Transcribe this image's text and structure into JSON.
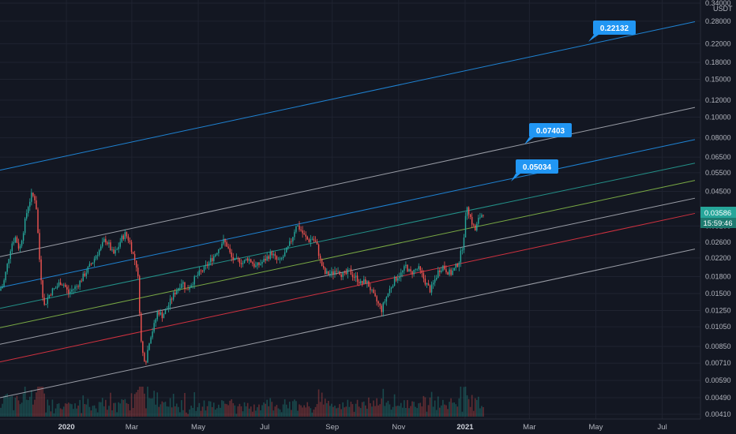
{
  "chart_data": {
    "type": "candlestick",
    "quote_currency": "USDT",
    "scale": "log",
    "grid": true,
    "y_tick_labels": [
      "0.34000",
      "0.28000",
      "0.22000",
      "0.18000",
      "0.15000",
      "0.12000",
      "0.10000",
      "0.08000",
      "0.06500",
      "0.05500",
      "0.04500",
      "0.03600",
      "0.03100",
      "0.02600",
      "0.02200",
      "0.01800",
      "0.01500",
      "0.01250",
      "0.01050",
      "0.00850",
      "0.00710",
      "0.00590",
      "0.00490",
      "0.00410"
    ],
    "x_tick_labels": [
      {
        "label": "2020",
        "year": true
      },
      {
        "label": "Mar",
        "year": false
      },
      {
        "label": "May",
        "year": false
      },
      {
        "label": "Jul",
        "year": false
      },
      {
        "label": "Sep",
        "year": false
      },
      {
        "label": "Nov",
        "year": false
      },
      {
        "label": "2021",
        "year": true
      },
      {
        "label": "Mar",
        "year": false
      },
      {
        "label": "May",
        "year": false
      },
      {
        "label": "Jul",
        "year": false
      }
    ],
    "last_price": "0.03586",
    "countdown": "15:59:46",
    "price_path": [
      0.0155,
      0.0165,
      0.0205,
      0.0255,
      0.0275,
      0.024,
      0.03,
      0.038,
      0.0435,
      0.041,
      0.0205,
      0.013,
      0.0145,
      0.0155,
      0.016,
      0.017,
      0.0165,
      0.015,
      0.0157,
      0.0162,
      0.0172,
      0.0185,
      0.0198,
      0.0212,
      0.023,
      0.0245,
      0.027,
      0.0252,
      0.0228,
      0.024,
      0.027,
      0.0285,
      0.0265,
      0.0225,
      0.0195,
      0.0082,
      0.0072,
      0.0093,
      0.0105,
      0.0125,
      0.0118,
      0.0125,
      0.0137,
      0.015,
      0.016,
      0.0172,
      0.0155,
      0.0165,
      0.0175,
      0.0185,
      0.0192,
      0.0202,
      0.0215,
      0.0228,
      0.0245,
      0.0265,
      0.0252,
      0.0222,
      0.0212,
      0.0215,
      0.0208,
      0.022,
      0.0212,
      0.02,
      0.0206,
      0.0213,
      0.0223,
      0.0233,
      0.0216,
      0.0212,
      0.0226,
      0.0245,
      0.0272,
      0.0315,
      0.03,
      0.0278,
      0.0265,
      0.0272,
      0.0255,
      0.0212,
      0.0186,
      0.0186,
      0.0186,
      0.0198,
      0.0186,
      0.0182,
      0.0192,
      0.0182,
      0.0176,
      0.0166,
      0.0172,
      0.0162,
      0.0146,
      0.0136,
      0.0126,
      0.0142,
      0.0157,
      0.0172,
      0.0181,
      0.0187,
      0.0202,
      0.0186,
      0.0192,
      0.0197,
      0.0182,
      0.0166,
      0.0155,
      0.0172,
      0.0192,
      0.0202,
      0.0192,
      0.0186,
      0.0196,
      0.0212,
      0.0255,
      0.039,
      0.033,
      0.0295,
      0.034,
      0.0359
    ],
    "series": [
      {
        "color": "#2196f3",
        "points": [
          [
            "2019-11-01",
            0.0565
          ],
          [
            "2021-07-31",
            0.2786
          ]
        ]
      },
      {
        "color": "#b2b5be",
        "points": [
          [
            "2019-11-01",
            0.0223
          ],
          [
            "2021-07-31",
            0.1109
          ]
        ]
      },
      {
        "color": "#2196f3",
        "points": [
          [
            "2019-11-01",
            0.016
          ],
          [
            "2021-07-31",
            0.0785
          ]
        ]
      },
      {
        "color": "#26a69a",
        "points": [
          [
            "2019-11-01",
            0.0128
          ],
          [
            "2021-07-31",
            0.0609
          ]
        ]
      },
      {
        "color": "#8bc34a",
        "points": [
          [
            "2019-11-01",
            0.0104
          ],
          [
            "2021-07-31",
            0.0506
          ]
        ]
      },
      {
        "color": "#b2b5be",
        "points": [
          [
            "2019-11-01",
            0.0087
          ],
          [
            "2021-07-31",
            0.0418
          ]
        ]
      },
      {
        "color": "#f23645",
        "points": [
          [
            "2019-11-01",
            0.0072
          ],
          [
            "2021-07-31",
            0.0355
          ]
        ]
      },
      {
        "color": "#b2b5be",
        "points": [
          [
            "2019-11-01",
            0.0049
          ],
          [
            "2021-07-31",
            0.0242
          ]
        ]
      }
    ],
    "annotations": [
      "0.22132",
      "0.07403",
      "0.05034"
    ]
  },
  "colors": {
    "background": "#131722",
    "grid": "#1f2330",
    "up": "#26a69a",
    "down": "#ef5350",
    "price_tag": "#26a69a",
    "callout": "#2196f3"
  }
}
